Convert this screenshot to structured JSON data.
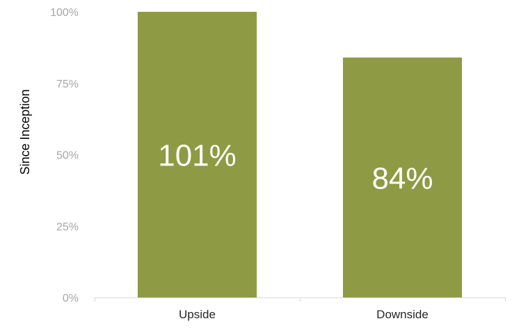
{
  "chart_data": {
    "type": "bar",
    "categories": [
      "Upside",
      "Downside"
    ],
    "values": [
      101,
      84
    ],
    "data_labels": [
      "101%",
      "84%"
    ],
    "title": "",
    "xlabel": "",
    "ylabel": "Since Inception",
    "ylim": [
      0,
      100
    ],
    "yticks": [
      0,
      25,
      50,
      75,
      100
    ],
    "ytick_labels": [
      "0%",
      "25%",
      "50%",
      "75%",
      "100%"
    ],
    "grid": false,
    "legend": "none",
    "bar_color": "#8f9a44"
  }
}
